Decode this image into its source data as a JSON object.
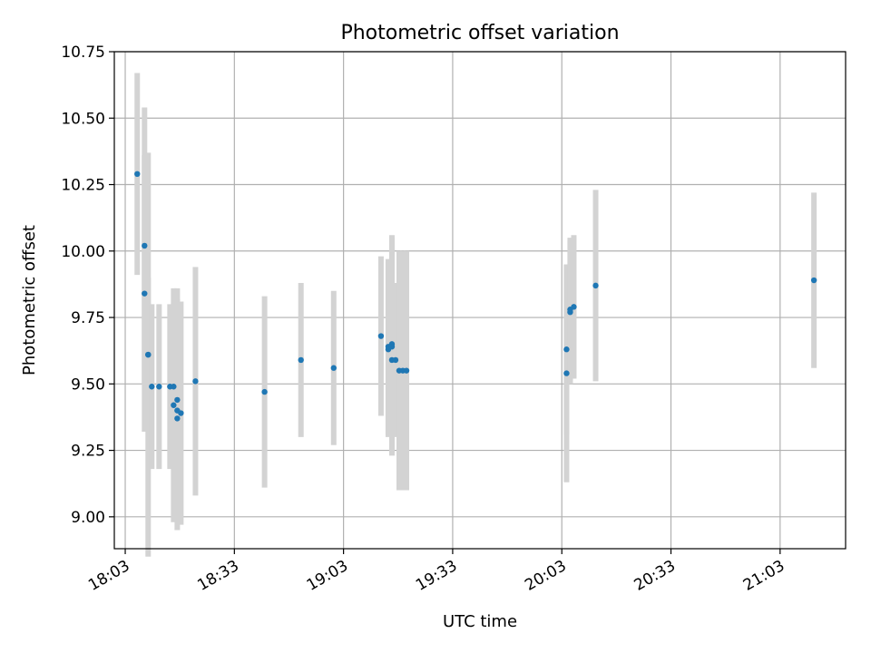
{
  "chart_data": {
    "type": "scatter",
    "title": "Photometric offset variation",
    "xlabel": "UTC time",
    "ylabel": "Photometric offset",
    "x_tick_labels": [
      "18:03",
      "18:33",
      "19:03",
      "19:33",
      "20:03",
      "20:33",
      "21:03"
    ],
    "y_tick_labels": [
      "9.00",
      "9.25",
      "9.50",
      "9.75",
      "10.00",
      "10.25",
      "10.50",
      "10.75"
    ],
    "y_ticks": [
      9.0,
      9.25,
      9.5,
      9.75,
      10.0,
      10.25,
      10.5,
      10.75
    ],
    "xlim": [
      "18:00",
      "21:21"
    ],
    "ylim": [
      8.88,
      10.75
    ],
    "grid": true,
    "marker_color": "#1f77b4",
    "errorbar_color": "#d3d3d3",
    "points": [
      {
        "x": "18:06",
        "y": 10.29,
        "yerr": 0.38
      },
      {
        "x": "18:08",
        "y": 10.02,
        "yerr": 0.52
      },
      {
        "x": "18:08",
        "y": 9.84,
        "yerr": 0.52
      },
      {
        "x": "18:09",
        "y": 9.61,
        "yerr": 0.76
      },
      {
        "x": "18:09",
        "y": 9.61,
        "yerr": 0.29
      },
      {
        "x": "18:10",
        "y": 9.49,
        "yerr": 0.31
      },
      {
        "x": "18:12",
        "y": 9.49,
        "yerr": 0.31
      },
      {
        "x": "18:15",
        "y": 9.49,
        "yerr": 0.31
      },
      {
        "x": "18:16",
        "y": 9.49,
        "yerr": 0.31
      },
      {
        "x": "18:16",
        "y": 9.42,
        "yerr": 0.44
      },
      {
        "x": "18:17",
        "y": 9.37,
        "yerr": 0.42
      },
      {
        "x": "18:17",
        "y": 9.44,
        "yerr": 0.42
      },
      {
        "x": "18:17",
        "y": 9.4,
        "yerr": 0.42
      },
      {
        "x": "18:18",
        "y": 9.39,
        "yerr": 0.42
      },
      {
        "x": "18:22",
        "y": 9.51,
        "yerr": 0.43
      },
      {
        "x": "18:41",
        "y": 9.47,
        "yerr": 0.36
      },
      {
        "x": "18:51",
        "y": 9.59,
        "yerr": 0.29
      },
      {
        "x": "19:00",
        "y": 9.56,
        "yerr": 0.29
      },
      {
        "x": "19:13",
        "y": 9.68,
        "yerr": 0.3
      },
      {
        "x": "19:15",
        "y": 9.64,
        "yerr": 0.33
      },
      {
        "x": "19:15",
        "y": 9.63,
        "yerr": 0.33
      },
      {
        "x": "19:16",
        "y": 9.59,
        "yerr": 0.29
      },
      {
        "x": "19:16",
        "y": 9.65,
        "yerr": 0.41
      },
      {
        "x": "19:16",
        "y": 9.64,
        "yerr": 0.41
      },
      {
        "x": "19:17",
        "y": 9.59,
        "yerr": 0.29
      },
      {
        "x": "19:18",
        "y": 9.55,
        "yerr": 0.45
      },
      {
        "x": "19:19",
        "y": 9.55,
        "yerr": 0.45
      },
      {
        "x": "19:20",
        "y": 9.55,
        "yerr": 0.45
      },
      {
        "x": "20:04",
        "y": 9.54,
        "yerr": 0.41
      },
      {
        "x": "20:04",
        "y": 9.63,
        "yerr": 0.32
      },
      {
        "x": "20:05",
        "y": 9.77,
        "yerr": 0.27
      },
      {
        "x": "20:05",
        "y": 9.78,
        "yerr": 0.27
      },
      {
        "x": "20:06",
        "y": 9.79,
        "yerr": 0.27
      },
      {
        "x": "20:12",
        "y": 9.87,
        "yerr": 0.36
      },
      {
        "x": "21:12",
        "y": 9.89,
        "yerr": 0.33
      }
    ]
  }
}
